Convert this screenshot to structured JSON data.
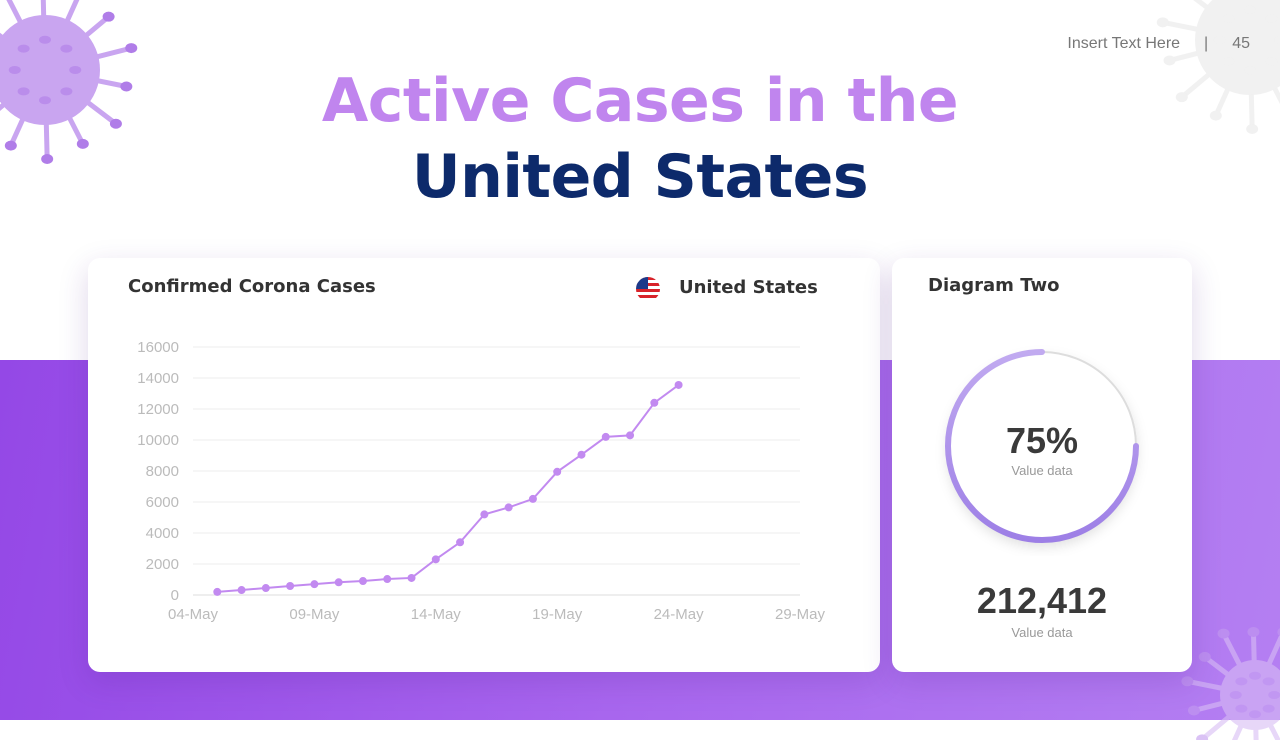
{
  "header": {
    "note": "Insert Text Here",
    "separator": "|",
    "page_number": "45"
  },
  "title": {
    "line1": "Active Cases in the",
    "line2": "United States"
  },
  "colors": {
    "accent": "#c085ee",
    "title_dark": "#0d2a6b",
    "line": "#c28af0",
    "band": "#a866ee"
  },
  "chart_card": {
    "title": "Confirmed Corona Cases",
    "country": "United States",
    "flag_icon": "us-flag-icon"
  },
  "chart_data": {
    "type": "line",
    "xlabel": "",
    "ylabel": "",
    "ylim": [
      0,
      16000
    ],
    "yticks": [
      "0",
      "2000",
      "4000",
      "6000",
      "8000",
      "10000",
      "12000",
      "14000",
      "16000"
    ],
    "xticks": [
      "04-May",
      "09-May",
      "14-May",
      "19-May",
      "24-May",
      "29-May"
    ],
    "xlim": [
      "2020-05-04",
      "2020-05-29"
    ],
    "grid": true,
    "x": [
      "05-May",
      "06-May",
      "07-May",
      "08-May",
      "09-May",
      "10-May",
      "11-May",
      "12-May",
      "13-May",
      "14-May",
      "15-May",
      "16-May",
      "17-May",
      "18-May",
      "19-May",
      "20-May",
      "21-May",
      "22-May",
      "23-May",
      "24-May"
    ],
    "series": [
      {
        "values": [
          200,
          320,
          450,
          580,
          700,
          820,
          900,
          1030,
          1100,
          2300,
          3400,
          5200,
          5650,
          6200,
          7950,
          9050,
          10200,
          10300,
          12400,
          13550
        ]
      }
    ]
  },
  "diagram_two": {
    "title": "Diagram Two",
    "percent": 75,
    "percent_label": "75%",
    "percent_caption": "Value data",
    "total": "212,412",
    "total_caption": "Value data"
  }
}
